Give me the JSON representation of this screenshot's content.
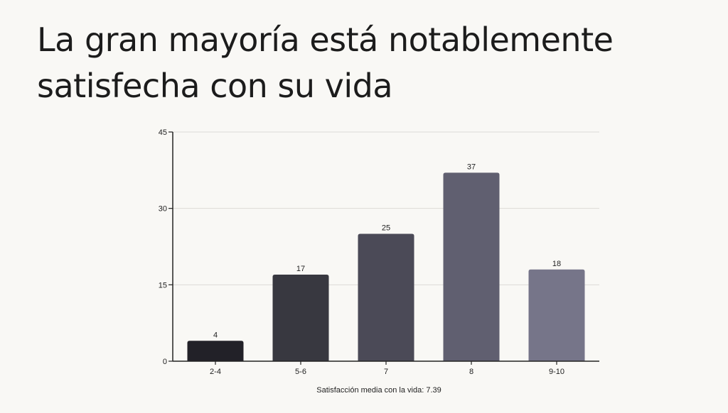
{
  "title": "La gran mayoría está notablemente satisfecha con su vida",
  "chart_data": {
    "type": "bar",
    "title": "La gran mayoría está notablemente satisfecha con su vida",
    "categories": [
      "2-4",
      "5-6",
      "7",
      "8",
      "9-10"
    ],
    "values": [
      4,
      17,
      25,
      37,
      18
    ],
    "colors": [
      "#222128",
      "#383840",
      "#4b4a57",
      "#605f70",
      "#767589"
    ],
    "xlabel": "Satisfacción media con la vida: 7.39",
    "ylabel": "",
    "ylim": [
      0,
      45
    ],
    "yticks": [
      0,
      15,
      30,
      45
    ],
    "grid": true,
    "data_labels": true
  }
}
